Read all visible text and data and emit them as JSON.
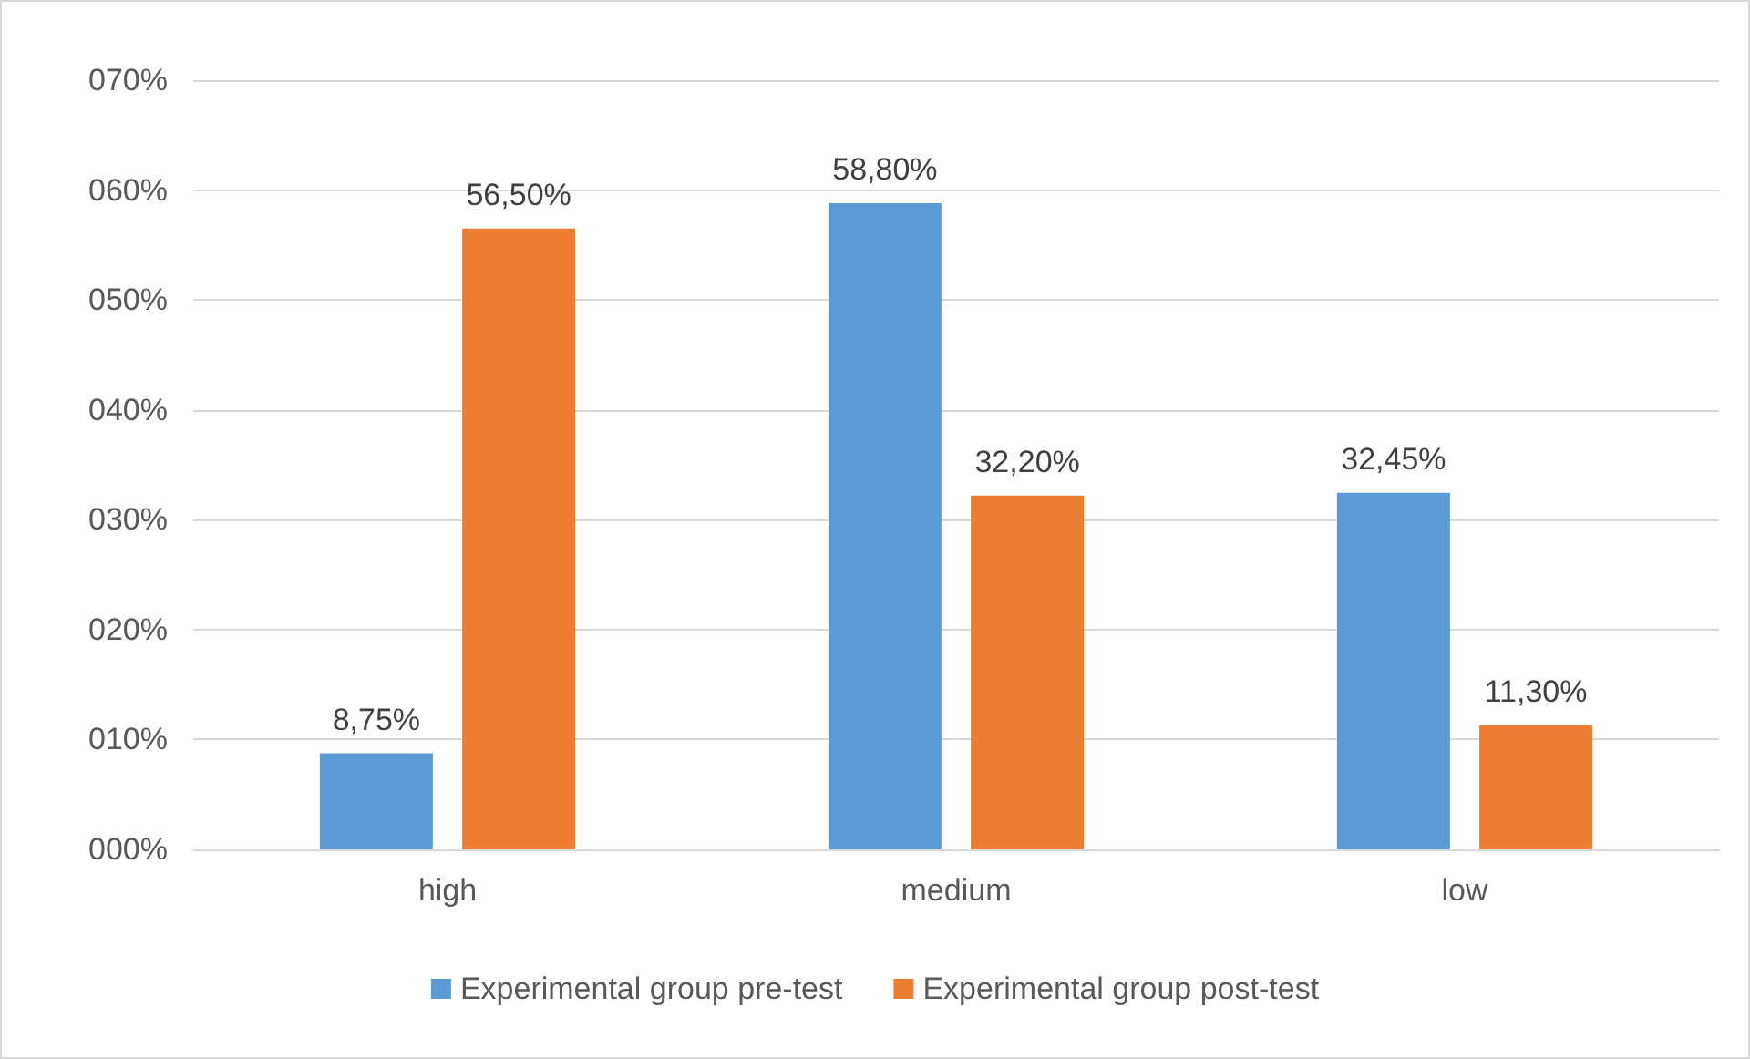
{
  "chart_data": {
    "type": "bar",
    "categories": [
      "high",
      "medium",
      "low"
    ],
    "series": [
      {
        "name": "Experimental group pre-test",
        "color": "#5b9bd5",
        "values": [
          8.75,
          58.8,
          32.45
        ],
        "value_labels": [
          "8,75%",
          "58,80%",
          "32,45%"
        ]
      },
      {
        "name": "Experimental group post-test",
        "color": "#ed7d31",
        "values": [
          56.5,
          32.2,
          11.3
        ],
        "value_labels": [
          "56,50%",
          "32,20%",
          "11,30%"
        ]
      }
    ],
    "ylim": [
      0,
      70
    ],
    "yticks": [
      {
        "value": 0,
        "label": "000%"
      },
      {
        "value": 10,
        "label": "010%"
      },
      {
        "value": 20,
        "label": "020%"
      },
      {
        "value": 30,
        "label": "030%"
      },
      {
        "value": 40,
        "label": "040%"
      },
      {
        "value": 50,
        "label": "050%"
      },
      {
        "value": 60,
        "label": "060%"
      },
      {
        "value": 70,
        "label": "070%"
      }
    ],
    "grid": "y",
    "legend": "bottom"
  }
}
